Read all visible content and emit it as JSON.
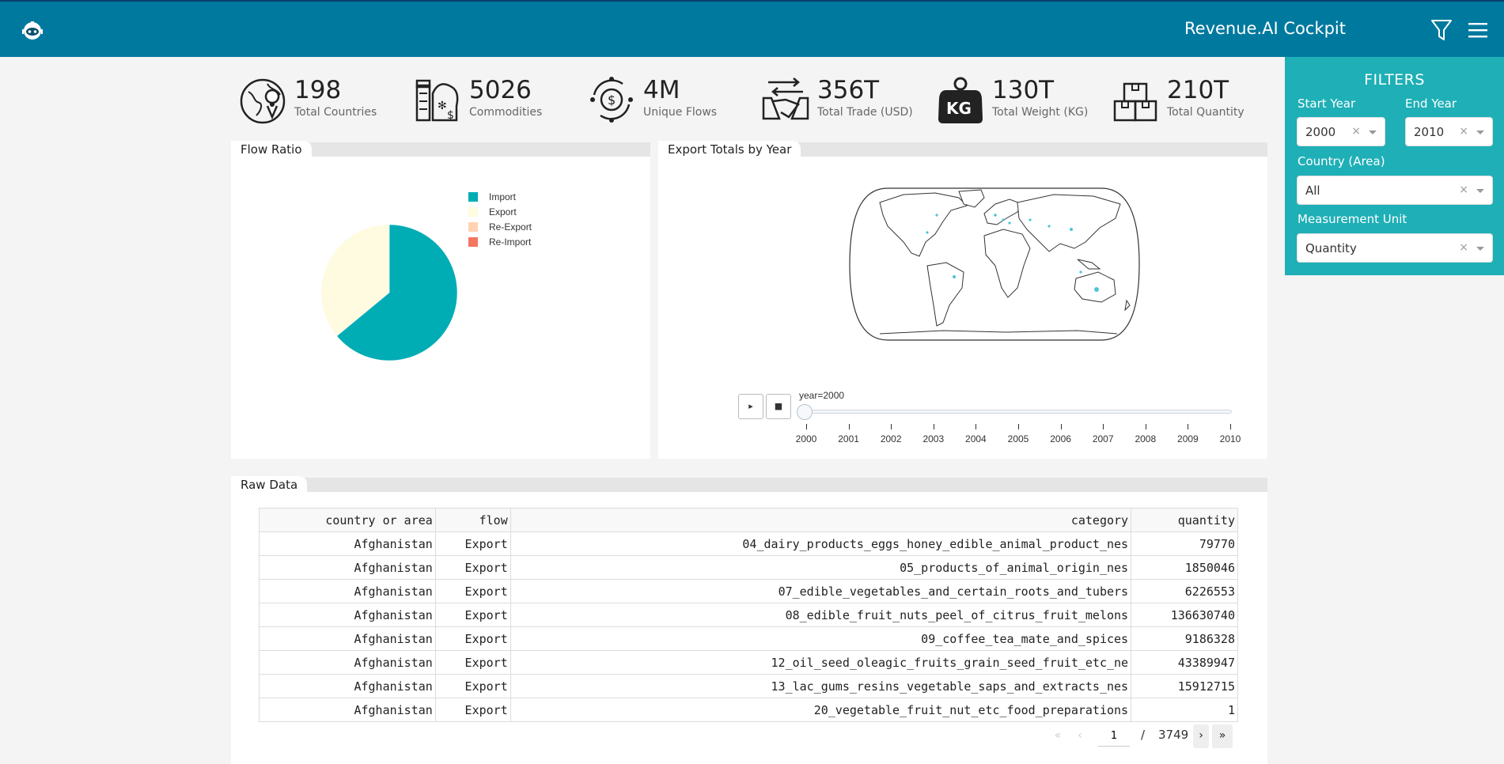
{
  "header": {
    "title": "Revenue.AI Cockpit",
    "logo_icon": "robot-logo-icon",
    "filter_icon": "funnel-icon",
    "menu_icon": "hamburger-menu-icon"
  },
  "kpis": [
    {
      "value": "198",
      "label": "Total Countries",
      "icon": "globe-pin-icon"
    },
    {
      "value": "5026",
      "label": "Commodities",
      "icon": "goods-icon"
    },
    {
      "value": "4M",
      "label": "Unique Flows",
      "icon": "dollar-cycle-icon"
    },
    {
      "value": "356T",
      "label": "Total Trade (USD)",
      "icon": "handshake-icon"
    },
    {
      "value": "130T",
      "label": "Total Weight (KG)",
      "icon": "kg-weight-icon"
    },
    {
      "value": "210T",
      "label": "Total Quantity",
      "icon": "boxes-icon"
    }
  ],
  "flow_panel": {
    "title": "Flow Ratio"
  },
  "chart_data": {
    "type": "pie",
    "categories": [
      "Import",
      "Export",
      "Re-Export",
      "Re-Import"
    ],
    "values": [
      64,
      36,
      0,
      0
    ],
    "colors": [
      "#00adb5",
      "#fefbe0",
      "#ffd3b2",
      "#f47560"
    ],
    "legend": "top-right"
  },
  "map_panel": {
    "title": "Export Totals by Year",
    "slider_label": "year=2000",
    "play_label": "▸",
    "stop_label": "■",
    "years": [
      "2000",
      "2001",
      "2002",
      "2003",
      "2004",
      "2005",
      "2006",
      "2007",
      "2008",
      "2009",
      "2010"
    ],
    "selected_year": "2000"
  },
  "filters": {
    "title": "FILTERS",
    "start_year_label": "Start Year",
    "start_year": "2000",
    "end_year_label": "End Year",
    "end_year": "2010",
    "country_label": "Country (Area)",
    "country": "All",
    "unit_label": "Measurement Unit",
    "unit": "Quantity",
    "clear": "×"
  },
  "raw": {
    "title": "Raw Data",
    "columns": [
      "country or area",
      "flow",
      "category",
      "quantity"
    ],
    "rows": [
      [
        "Afghanistan",
        "Export",
        "04_dairy_products_eggs_honey_edible_animal_product_nes",
        "79770"
      ],
      [
        "Afghanistan",
        "Export",
        "05_products_of_animal_origin_nes",
        "1850046"
      ],
      [
        "Afghanistan",
        "Export",
        "07_edible_vegetables_and_certain_roots_and_tubers",
        "6226553"
      ],
      [
        "Afghanistan",
        "Export",
        "08_edible_fruit_nuts_peel_of_citrus_fruit_melons",
        "136630740"
      ],
      [
        "Afghanistan",
        "Export",
        "09_coffee_tea_mate_and_spices",
        "9186328"
      ],
      [
        "Afghanistan",
        "Export",
        "12_oil_seed_oleagic_fruits_grain_seed_fruit_etc_ne",
        "43389947"
      ],
      [
        "Afghanistan",
        "Export",
        "13_lac_gums_resins_vegetable_saps_and_extracts_nes",
        "15912715"
      ],
      [
        "Afghanistan",
        "Export",
        "20_vegetable_fruit_nut_etc_food_preparations",
        "1"
      ]
    ],
    "page": "1",
    "page_sep": "/",
    "total_pages": "3749"
  }
}
